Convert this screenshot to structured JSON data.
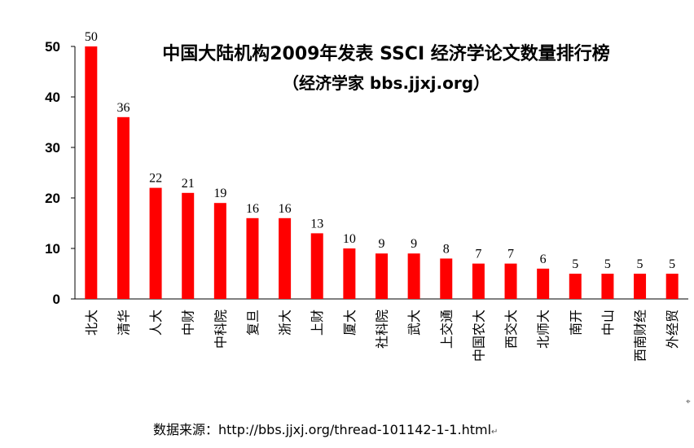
{
  "chart_data": {
    "type": "bar",
    "title": "中国大陆机构2009年发表 SSCI 经济学论文数量排行榜",
    "subtitle": "（经济学家 bbs.jjxj.org）",
    "categories": [
      "北大",
      "清华",
      "人大",
      "中财",
      "中科院",
      "复旦",
      "浙大",
      "上财",
      "厦大",
      "社科院",
      "武大",
      "上交通",
      "中国农大",
      "西交大",
      "北师大",
      "南开",
      "中山",
      "西南财经",
      "外经贸"
    ],
    "values": [
      50,
      36,
      22,
      21,
      19,
      16,
      16,
      13,
      10,
      9,
      9,
      8,
      7,
      7,
      6,
      5,
      5,
      5,
      5
    ],
    "yticks": [
      "0",
      "10",
      "20",
      "30",
      "40",
      "50"
    ],
    "ylim": [
      0,
      50
    ],
    "bar_color": "#ff0000",
    "grid": false,
    "legend": false
  },
  "source_text": "数据来源：http://bbs.jjxj.org/thread-101142-1-1.html",
  "source_mark": "↵",
  "corner_mark": "⌖"
}
